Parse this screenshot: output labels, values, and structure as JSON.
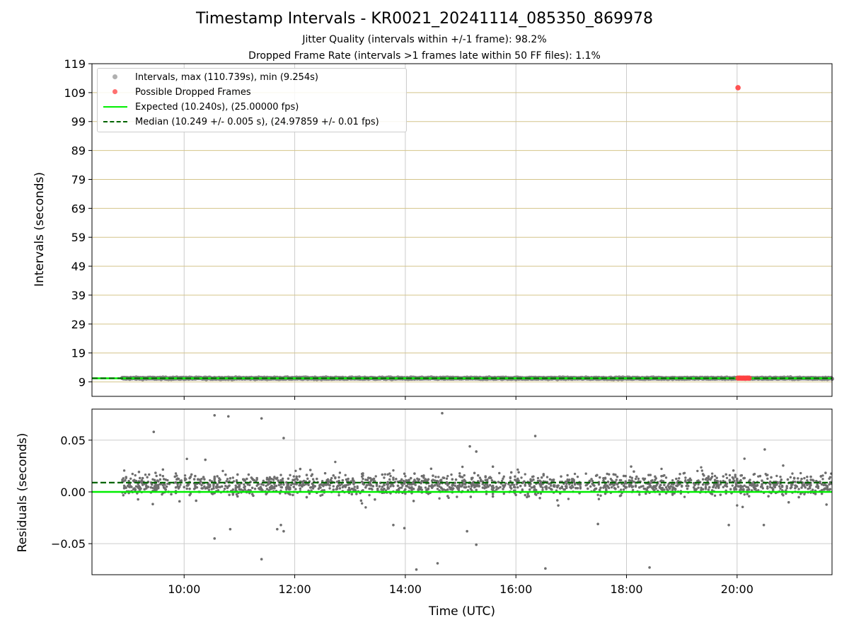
{
  "figure": {
    "title": "Timestamp Intervals - KR0021_20241114_085350_869978",
    "subtitle_1": "Jitter Quality (intervals within +/-1 frame): 98.2%",
    "subtitle_2": "Dropped Frame Rate (intervals >1 frames late within 50 FF files): 1.1%"
  },
  "legend": {
    "intervals": "Intervals, max (110.739s), min (9.254s)",
    "dropped": "Possible Dropped Frames",
    "expected": "Expected (10.240s), (25.00000 fps)",
    "median": "Median (10.249 +/- 0.005 s), (24.97859 +/- 0.01 fps)"
  },
  "colors": {
    "intervals": "#808080",
    "dropped": "#ff4040",
    "expected": "#00ee00",
    "median": "#006400",
    "hgrid_top": "#d4c48a",
    "grid": "#cccccc"
  },
  "chart_data": [
    {
      "type": "scatter",
      "title": "",
      "xlabel": "",
      "ylabel": "Intervals (seconds)",
      "xlim": [
        "08:20",
        "21:43"
      ],
      "ylim": [
        4,
        119
      ],
      "yticks": [
        "9",
        "19",
        "29",
        "39",
        "49",
        "59",
        "69",
        "79",
        "89",
        "99",
        "109",
        "119"
      ],
      "xticks": [
        "10:00",
        "12:00",
        "14:00",
        "16:00",
        "18:00",
        "20:00"
      ],
      "grid": true,
      "legend_position": "top-left",
      "series": [
        {
          "name": "Intervals, max (110.739s), min (9.254s)",
          "x_range": [
            "08:53",
            "21:43"
          ],
          "y_approx": 10.25,
          "max": 110.739,
          "min": 9.254
        },
        {
          "name": "Possible Dropped Frames",
          "points": [
            {
              "x": "20:01",
              "y": 110.7
            },
            {
              "x": "20:01",
              "y": 10.3
            },
            {
              "x": "20:03",
              "y": 10.3
            },
            {
              "x": "20:05",
              "y": 10.3
            },
            {
              "x": "20:07",
              "y": 10.3
            },
            {
              "x": "20:09",
              "y": 10.3
            },
            {
              "x": "20:11",
              "y": 10.3
            },
            {
              "x": "20:13",
              "y": 10.3
            }
          ]
        },
        {
          "name": "Expected (10.240s), (25.00000 fps)",
          "y": 10.24
        },
        {
          "name": "Median (10.249 +/- 0.005 s), (24.97859 +/- 0.01 fps)",
          "y": 10.249
        }
      ]
    },
    {
      "type": "scatter",
      "title": "",
      "xlabel": "Time (UTC)",
      "ylabel": "Residuals (seconds)",
      "xlim": [
        "08:20",
        "21:43"
      ],
      "ylim": [
        -0.08,
        0.08
      ],
      "yticks": [
        "−0.05",
        "0.00",
        "0.05"
      ],
      "xticks": [
        "10:00",
        "12:00",
        "14:00",
        "16:00",
        "18:00",
        "20:00"
      ],
      "grid": true,
      "series": [
        {
          "name": "residuals",
          "x_range": [
            "08:53",
            "21:43"
          ],
          "band": [
            -0.003,
            0.015
          ],
          "outliers": [
            {
              "x": "09:27",
              "y": 0.058
            },
            {
              "x": "10:33",
              "y": 0.074
            },
            {
              "x": "10:48",
              "y": 0.073
            },
            {
              "x": "11:24",
              "y": 0.071
            },
            {
              "x": "11:48",
              "y": 0.052
            },
            {
              "x": "14:40",
              "y": 0.076
            },
            {
              "x": "16:21",
              "y": 0.054
            },
            {
              "x": "15:10",
              "y": 0.044
            },
            {
              "x": "15:17",
              "y": 0.039
            },
            {
              "x": "20:30",
              "y": 0.041
            },
            {
              "x": "10:33",
              "y": -0.045
            },
            {
              "x": "10:50",
              "y": -0.036
            },
            {
              "x": "11:24",
              "y": -0.065
            },
            {
              "x": "11:41",
              "y": -0.036
            },
            {
              "x": "11:45",
              "y": -0.032
            },
            {
              "x": "11:48",
              "y": -0.038
            },
            {
              "x": "13:47",
              "y": -0.032
            },
            {
              "x": "13:59",
              "y": -0.035
            },
            {
              "x": "14:12",
              "y": -0.075
            },
            {
              "x": "14:35",
              "y": -0.069
            },
            {
              "x": "15:07",
              "y": -0.038
            },
            {
              "x": "15:17",
              "y": -0.051
            },
            {
              "x": "16:32",
              "y": -0.074
            },
            {
              "x": "17:29",
              "y": -0.031
            },
            {
              "x": "18:25",
              "y": -0.073
            },
            {
              "x": "19:51",
              "y": -0.032
            },
            {
              "x": "20:29",
              "y": -0.032
            }
          ]
        },
        {
          "name": "Expected",
          "y": 0.0
        },
        {
          "name": "Median",
          "y": 0.009
        }
      ]
    }
  ]
}
